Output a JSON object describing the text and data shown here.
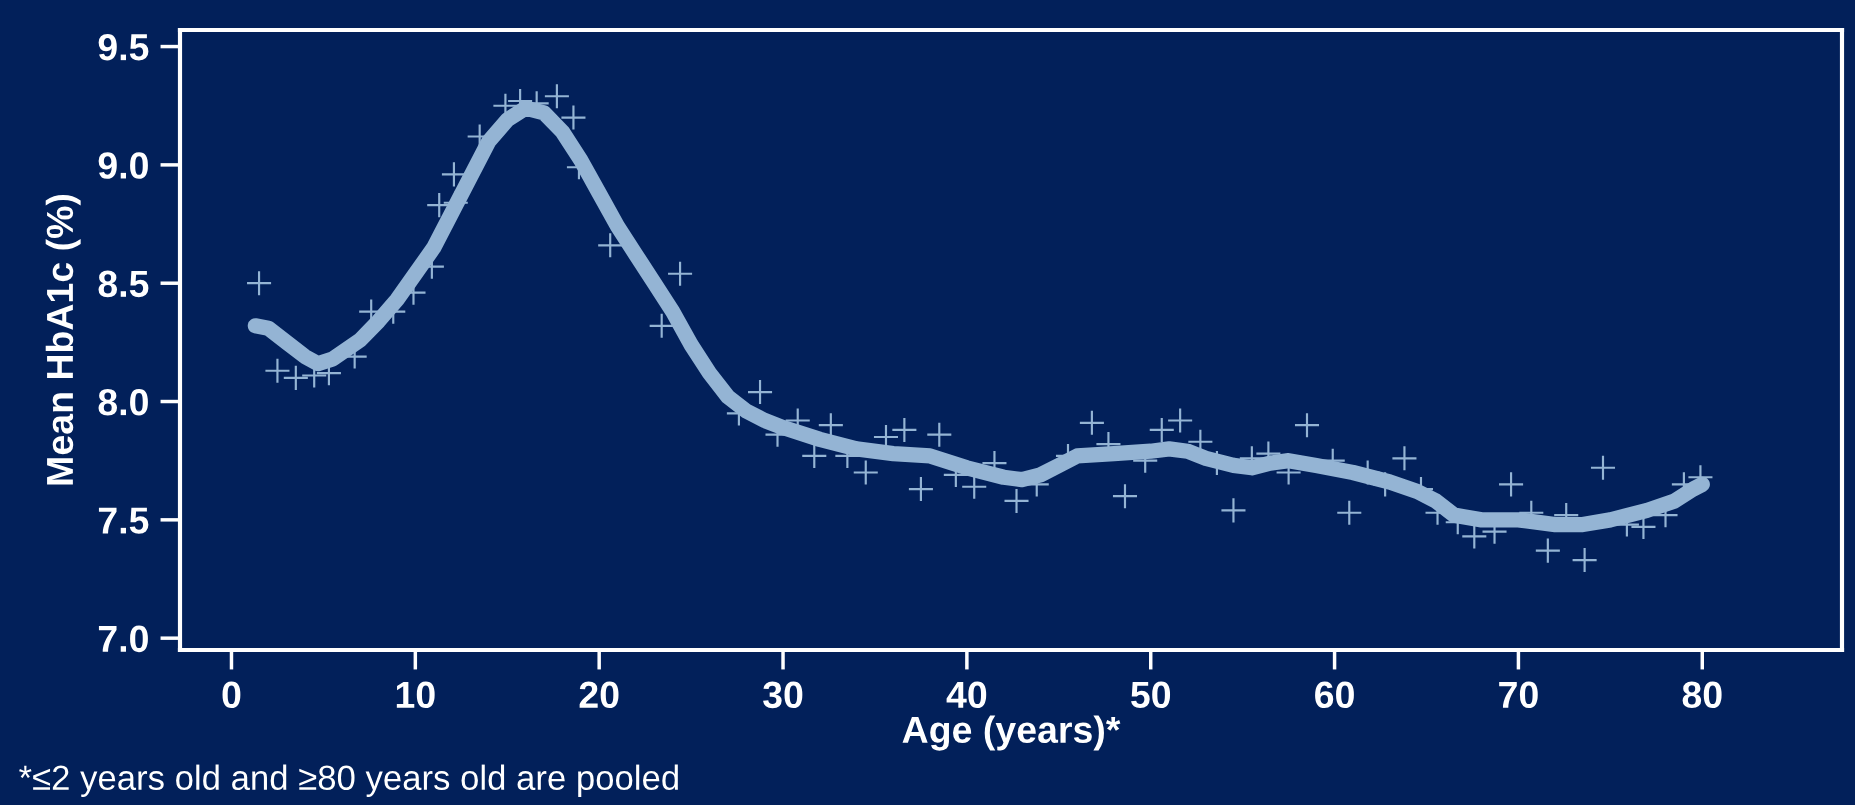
{
  "chart_data": {
    "type": "scatter",
    "xlabel": "Age (years)*",
    "ylabel": "Mean HbA1c (%)",
    "xlim": [
      -2.8,
      87.6
    ],
    "ylim": [
      6.95,
      9.57
    ],
    "xticks": [
      0,
      10,
      20,
      30,
      40,
      50,
      60,
      70,
      80
    ],
    "yticks": [
      {
        "value": 7.0,
        "label": "7.0"
      },
      {
        "value": 7.5,
        "label": "7.5"
      },
      {
        "value": 8.0,
        "label": "8.0"
      },
      {
        "value": 8.5,
        "label": "8.5"
      },
      {
        "value": 9.0,
        "label": "9.0"
      },
      {
        "value": 9.5,
        "label": "9.5"
      }
    ],
    "grid": false,
    "legend": false,
    "annotations": [
      "*≤2 years old and ≥80 years old are pooled"
    ],
    "series": [
      {
        "marker": "cross",
        "color": "#94b4d4",
        "x": [
          1.5,
          2.5,
          3.5,
          4.5,
          5.3,
          6.7,
          7.6,
          8.8,
          9.9,
          10.9,
          11.3,
          12.2,
          12.1,
          13.5,
          14.9,
          15.7,
          16.6,
          17.7,
          18.6,
          18.9,
          20.6,
          23.4,
          24.4,
          27.6,
          28.75,
          29.7,
          30.8,
          31.7,
          32.6,
          33.5,
          34.5,
          35.6,
          36.6,
          37.5,
          38.5,
          39.4,
          40.4,
          41.5,
          42.7,
          43.8,
          45.5,
          46.8,
          47.7,
          48.6,
          49.7,
          50.6,
          51.6,
          52.7,
          53.6,
          54.5,
          55.5,
          56.4,
          57.5,
          58.5,
          59.9,
          60.8,
          61.8,
          62.75,
          63.8,
          64.7,
          65.6,
          66.7,
          67.6,
          68.7,
          69.6,
          70.7,
          71.6,
          72.6,
          73.6,
          74.6,
          75.9,
          76.8,
          78.0,
          79.0,
          79.9
        ],
        "values": [
          8.5,
          8.13,
          8.1,
          8.11,
          8.12,
          8.19,
          8.38,
          8.38,
          8.46,
          8.57,
          8.83,
          8.84,
          8.96,
          9.12,
          9.25,
          9.27,
          9.26,
          9.29,
          9.2,
          8.99,
          8.66,
          8.32,
          8.54,
          7.95,
          8.04,
          7.86,
          7.92,
          7.77,
          7.9,
          7.77,
          7.7,
          7.85,
          7.88,
          7.63,
          7.86,
          7.69,
          7.64,
          7.74,
          7.58,
          7.65,
          7.77,
          7.91,
          7.82,
          7.6,
          7.75,
          7.88,
          7.92,
          7.83,
          7.74,
          7.54,
          7.76,
          7.78,
          7.7,
          7.9,
          7.75,
          7.53,
          7.7,
          7.65,
          7.76,
          7.63,
          7.53,
          7.49,
          7.43,
          7.45,
          7.65,
          7.53,
          7.37,
          7.52,
          7.33,
          7.72,
          7.48,
          7.47,
          7.52,
          7.65,
          7.68
        ]
      },
      {
        "type": "line",
        "marker": "none",
        "line_style": "solid",
        "color": "#94b4d4",
        "x": [
          1.3,
          2,
          3,
          4,
          4.7,
          5.5,
          7,
          8,
          9,
          10,
          11,
          12,
          13,
          14,
          15,
          16,
          17,
          18,
          19,
          20,
          21,
          22,
          23,
          24,
          25,
          26,
          27,
          28,
          29,
          30,
          32,
          34,
          36,
          38,
          40,
          42,
          43,
          44,
          45,
          46,
          48,
          50,
          51,
          52,
          53,
          54.5,
          55.5,
          56.5,
          57.5,
          59,
          61,
          63,
          64.5,
          65.5,
          66.5,
          68,
          70,
          72,
          73.5,
          75,
          77,
          78.5,
          79.5,
          80
        ],
        "values": [
          8.32,
          8.31,
          8.25,
          8.19,
          8.16,
          8.18,
          8.26,
          8.34,
          8.43,
          8.54,
          8.65,
          8.8,
          8.95,
          9.1,
          9.19,
          9.24,
          9.22,
          9.14,
          9.02,
          8.88,
          8.74,
          8.62,
          8.5,
          8.38,
          8.24,
          8.12,
          8.02,
          7.96,
          7.92,
          7.89,
          7.84,
          7.8,
          7.78,
          7.77,
          7.72,
          7.68,
          7.67,
          7.69,
          7.73,
          7.77,
          7.78,
          7.79,
          7.8,
          7.79,
          7.76,
          7.73,
          7.72,
          7.74,
          7.75,
          7.73,
          7.7,
          7.66,
          7.62,
          7.58,
          7.52,
          7.5,
          7.5,
          7.48,
          7.48,
          7.5,
          7.54,
          7.58,
          7.63,
          7.65
        ]
      }
    ]
  }
}
